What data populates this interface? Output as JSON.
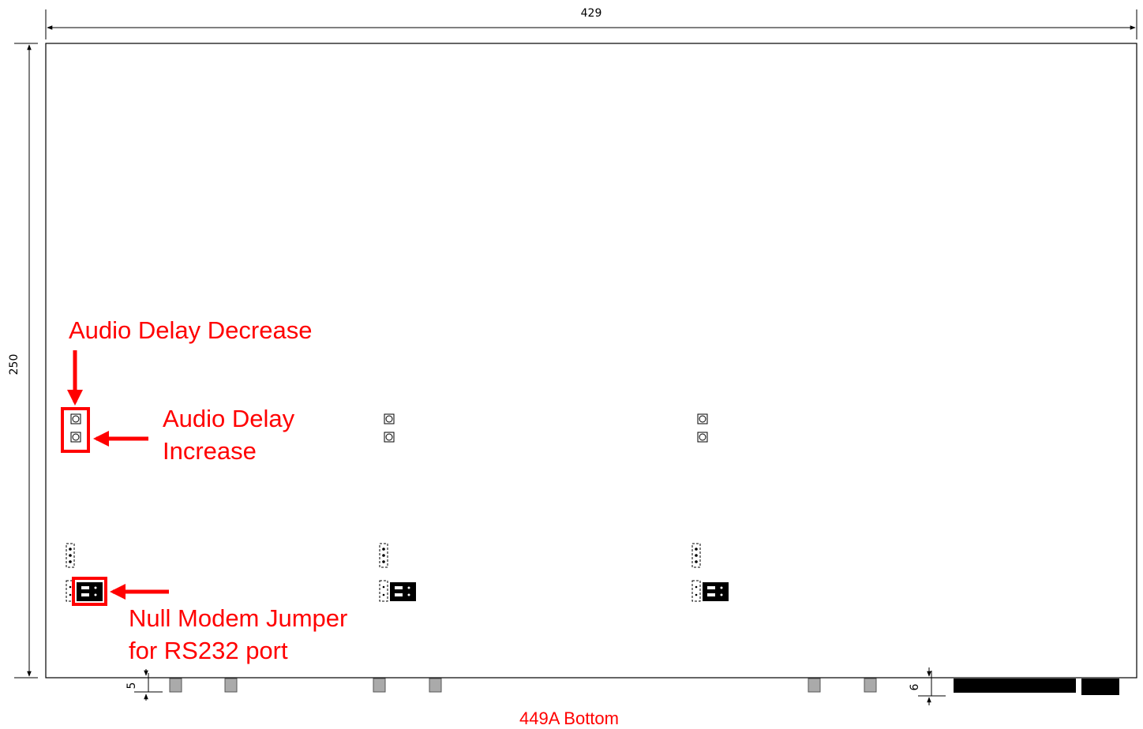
{
  "dimensions": {
    "width_label": "429",
    "height_label": "250",
    "left_offset_label": "5",
    "right_offset_label": "6"
  },
  "callouts": {
    "audio_delay_decrease": "Audio Delay Decrease",
    "audio_delay_increase_line1": "Audio Delay",
    "audio_delay_increase_line2": "Increase",
    "null_modem_line1": "Null Modem Jumper",
    "null_modem_line2": "for RS232 port"
  },
  "caption": "449A Bottom",
  "colors": {
    "annotation": "#ff0000",
    "outline": "#000000",
    "foot": "#aaaaaa"
  }
}
